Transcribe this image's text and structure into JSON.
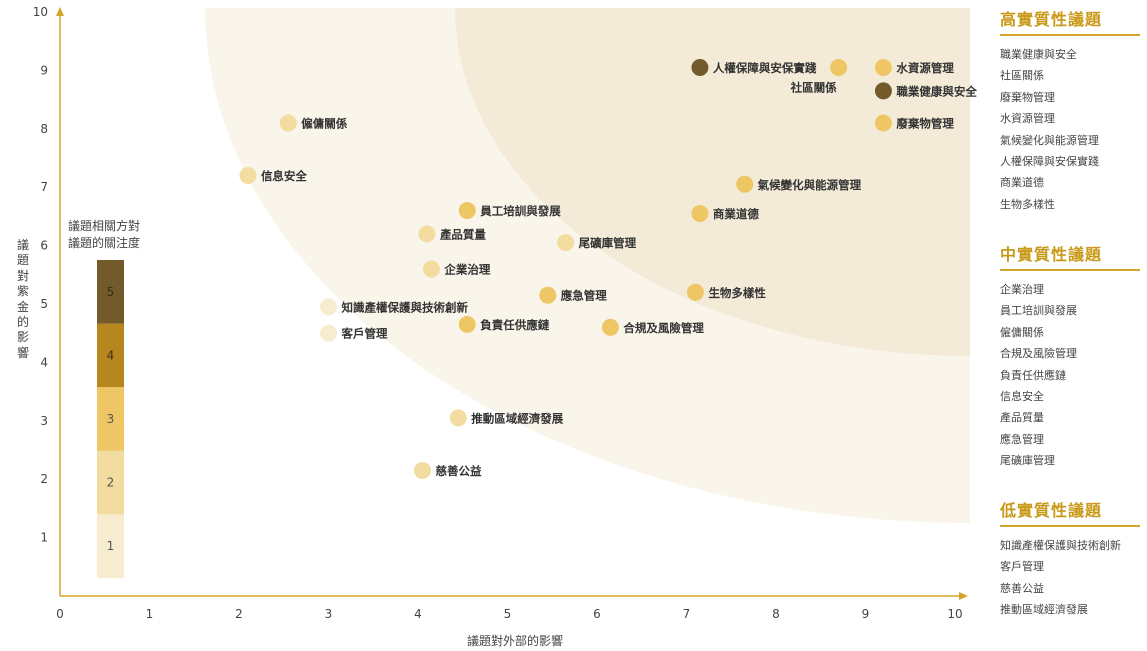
{
  "chart_data": {
    "type": "scatter",
    "xlabel": "議題對外部的影響",
    "ylabel": "議題對紫金的影響",
    "xlim": [
      0,
      10
    ],
    "ylim": [
      0,
      10
    ],
    "x_ticks": [
      "0",
      "1",
      "2",
      "3",
      "4",
      "5",
      "6",
      "7",
      "8",
      "9",
      "10"
    ],
    "y_ticks": [
      "1",
      "2",
      "3",
      "4",
      "5",
      "6",
      "7",
      "8",
      "9",
      "10"
    ],
    "grid": false,
    "scale_legend": {
      "title_lines": [
        "議題相關方對",
        "議題的關注度"
      ],
      "levels": [
        {
          "label": "1",
          "value": 1,
          "color": "#f8ecd0"
        },
        {
          "label": "2",
          "value": 2,
          "color": "#f3dca0"
        },
        {
          "label": "3",
          "value": 3,
          "color": "#eec764"
        },
        {
          "label": "4",
          "value": 4,
          "color": "#b8861e"
        },
        {
          "label": "5",
          "value": 5,
          "color": "#735a2a"
        }
      ]
    },
    "points": [
      {
        "name": "人權保障與安保實踐",
        "x": 7.15,
        "y": 9.05,
        "level": 5
      },
      {
        "name": "社區關係",
        "x": 8.7,
        "y": 9.05,
        "level": 3
      },
      {
        "name": "水資源管理",
        "x": 9.2,
        "y": 9.05,
        "level": 3
      },
      {
        "name": "職業健康與安全",
        "x": 9.2,
        "y": 8.65,
        "level": 5
      },
      {
        "name": "廢棄物管理",
        "x": 9.2,
        "y": 8.1,
        "level": 3
      },
      {
        "name": "氣候變化與能源管理",
        "x": 7.65,
        "y": 7.05,
        "level": 3
      },
      {
        "name": "商業道德",
        "x": 7.15,
        "y": 6.55,
        "level": 3
      },
      {
        "name": "生物多樣性",
        "x": 7.1,
        "y": 5.2,
        "level": 3
      },
      {
        "name": "僱傭關係",
        "x": 2.55,
        "y": 8.1,
        "level": 2
      },
      {
        "name": "信息安全",
        "x": 2.1,
        "y": 7.2,
        "level": 2
      },
      {
        "name": "員工培訓與發展",
        "x": 4.55,
        "y": 6.6,
        "level": 3
      },
      {
        "name": "產品質量",
        "x": 4.1,
        "y": 6.2,
        "level": 2
      },
      {
        "name": "尾礦庫管理",
        "x": 5.65,
        "y": 6.05,
        "level": 2
      },
      {
        "name": "企業治理",
        "x": 4.15,
        "y": 5.6,
        "level": 2
      },
      {
        "name": "應急管理",
        "x": 5.45,
        "y": 5.15,
        "level": 3
      },
      {
        "name": "負責任供應鏈",
        "x": 4.55,
        "y": 4.65,
        "level": 3
      },
      {
        "name": "合規及風險管理",
        "x": 6.15,
        "y": 4.6,
        "level": 3
      },
      {
        "name": "知識產權保護與技術創新",
        "x": 3.0,
        "y": 4.95,
        "level": 1
      },
      {
        "name": "客戶管理",
        "x": 3.0,
        "y": 4.5,
        "level": 1
      },
      {
        "name": "推動區域經濟發展",
        "x": 4.45,
        "y": 3.05,
        "level": 2
      },
      {
        "name": "慈善公益",
        "x": 4.05,
        "y": 2.15,
        "level": 2
      }
    ]
  },
  "sidebar": {
    "groups": [
      {
        "title": "高實質性議題",
        "items": [
          "職業健康與安全",
          "社區關係",
          "廢棄物管理",
          "水資源管理",
          "氣候變化與能源管理",
          "人權保障與安保實踐",
          "商業道德",
          "生物多樣性"
        ]
      },
      {
        "title": "中實質性議題",
        "items": [
          "企業治理",
          "員工培訓與發展",
          "僱傭關係",
          "合規及風險管理",
          "負責任供應鏈",
          "信息安全",
          "產品質量",
          "應急管理",
          "尾礦庫管理"
        ]
      },
      {
        "title": "低實質性議題",
        "items": [
          "知識產權保護與技術創新",
          "客戶管理",
          "慈善公益",
          "推動區域經濟發展"
        ]
      }
    ]
  },
  "colors": {
    "accent": "#d4a52c",
    "outer_band": "#faf5ea",
    "inner_band": "#f3ebd8",
    "axis": "#d4a52c"
  }
}
